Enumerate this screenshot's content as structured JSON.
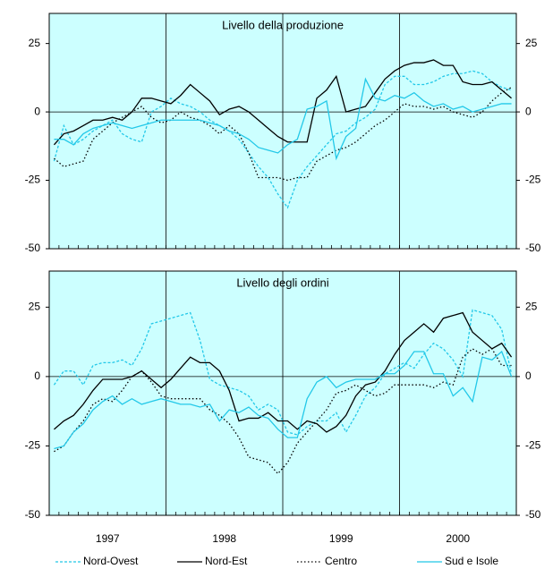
{
  "chart_data": [
    {
      "type": "line",
      "title": "Livello della produzione",
      "ylim": [
        -50,
        36
      ],
      "yticks": [
        -50,
        -25,
        0,
        25
      ],
      "background": "#ccffff",
      "series": [
        {
          "name": "Nord-Ovest",
          "color": "#22c8e8",
          "style": "dashed",
          "values": [
            -18,
            -5,
            -12,
            -10,
            -7,
            -5,
            -3,
            -8,
            -10,
            -11,
            0,
            2,
            5,
            3,
            2,
            0,
            -3,
            -5,
            -7,
            -10,
            -15,
            -20,
            -24,
            -30,
            -35,
            -25,
            -20,
            -16,
            -12,
            -8,
            -7,
            -4,
            -2,
            1,
            10,
            13,
            13,
            10,
            10,
            11,
            13,
            14,
            14,
            15,
            14,
            11,
            9,
            8
          ]
        },
        {
          "name": "Nord-Est",
          "color": "#000000",
          "style": "solid",
          "values": [
            -12,
            -8,
            -7,
            -5,
            -3,
            -3,
            -2,
            -3,
            0,
            5,
            5,
            4,
            3,
            6,
            10,
            7,
            4,
            -1,
            1,
            2,
            0,
            -3,
            -6,
            -9,
            -11,
            -11,
            -11,
            5,
            8,
            13,
            0,
            1,
            2,
            7,
            12,
            15,
            17,
            18,
            18,
            19,
            17,
            17,
            11,
            10,
            10,
            11,
            8,
            5
          ]
        },
        {
          "name": "Centro",
          "color": "#000000",
          "style": "dotted",
          "values": [
            -17,
            -20,
            -19,
            -18,
            -10,
            -7,
            -4,
            -2,
            0,
            2,
            -2,
            -4,
            -3,
            0,
            -2,
            -3,
            -5,
            -8,
            -5,
            -8,
            -15,
            -24,
            -24,
            -24,
            -25,
            -24,
            -24,
            -18,
            -16,
            -14,
            -13,
            -11,
            -8,
            -5,
            -3,
            0,
            3,
            2,
            2,
            1,
            2,
            0,
            -1,
            -2,
            0,
            4,
            7,
            9
          ]
        },
        {
          "name": "Sud e Isole",
          "color": "#22c8e8",
          "style": "solid",
          "values": [
            -10,
            -10,
            -12,
            -8,
            -6,
            -5,
            -4,
            -5,
            -6,
            -5,
            -4,
            -3,
            -3,
            -3,
            -3,
            -3,
            -4,
            -5,
            -7,
            -8,
            -10,
            -13,
            -14,
            -15,
            -12,
            -10,
            1,
            2,
            4,
            -17,
            -9,
            -6,
            12,
            5,
            4,
            6,
            5,
            7,
            4,
            2,
            3,
            1,
            2,
            0,
            1,
            2,
            3,
            3
          ]
        }
      ]
    },
    {
      "type": "line",
      "title": "Livello degli ordini",
      "ylim": [
        -50,
        38
      ],
      "yticks": [
        -50,
        -25,
        0,
        25
      ],
      "background": "#ccffff",
      "year_labels": [
        "1997",
        "1998",
        "1999",
        "2000"
      ],
      "series": [
        {
          "name": "Nord-Ovest",
          "color": "#22c8e8",
          "style": "dashed",
          "values": [
            -3,
            2,
            2,
            -3,
            4,
            5,
            5,
            6,
            4,
            10,
            19,
            20,
            21,
            22,
            23,
            13,
            -1,
            -3,
            -4,
            -5,
            -7,
            -12,
            -10,
            -12,
            -20,
            -21,
            -18,
            -16,
            -16,
            -13,
            -20,
            -14,
            -7,
            -4,
            1,
            3,
            5,
            3,
            8,
            12,
            10,
            6,
            0,
            24,
            23,
            22,
            17,
            1
          ]
        },
        {
          "name": "Nord-Est",
          "color": "#000000",
          "style": "solid",
          "values": [
            -19,
            -16,
            -14,
            -10,
            -5,
            -1,
            -1,
            -1,
            0,
            2,
            -1,
            -4,
            -1,
            3,
            7,
            5,
            5,
            2,
            -5,
            -16,
            -15,
            -15,
            -13,
            -16,
            -16,
            -19,
            -16,
            -17,
            -20,
            -18,
            -14,
            -7,
            -3,
            -2,
            2,
            8,
            13,
            16,
            19,
            16,
            21,
            22,
            23,
            16,
            13,
            10,
            12,
            7
          ]
        },
        {
          "name": "Centro",
          "color": "#000000",
          "style": "dotted",
          "values": [
            -27,
            -25,
            -20,
            -16,
            -10,
            -8,
            -9,
            -5,
            0,
            2,
            -2,
            -7,
            -8,
            -8,
            -8,
            -8,
            -12,
            -14,
            -17,
            -22,
            -29,
            -30,
            -31,
            -35,
            -31,
            -24,
            -20,
            -16,
            -12,
            -6,
            -5,
            -3,
            -5,
            -7,
            -6,
            -3,
            -3,
            -3,
            -3,
            -4,
            -2,
            -3,
            7,
            10,
            8,
            10,
            4,
            4
          ]
        },
        {
          "name": "Sud e Isole",
          "color": "#22c8e8",
          "style": "solid",
          "values": [
            -26,
            -25,
            -20,
            -17,
            -12,
            -9,
            -7,
            -10,
            -8,
            -10,
            -9,
            -8,
            -9,
            -10,
            -10,
            -11,
            -10,
            -16,
            -12,
            -13,
            -11,
            -14,
            -15,
            -19,
            -22,
            -22,
            -8,
            -2,
            0,
            -4,
            -2,
            -1,
            -1,
            -1,
            1,
            1,
            4,
            9,
            9,
            1,
            1,
            -7,
            -4,
            -9,
            7,
            6,
            9,
            0
          ]
        }
      ]
    }
  ]
}
